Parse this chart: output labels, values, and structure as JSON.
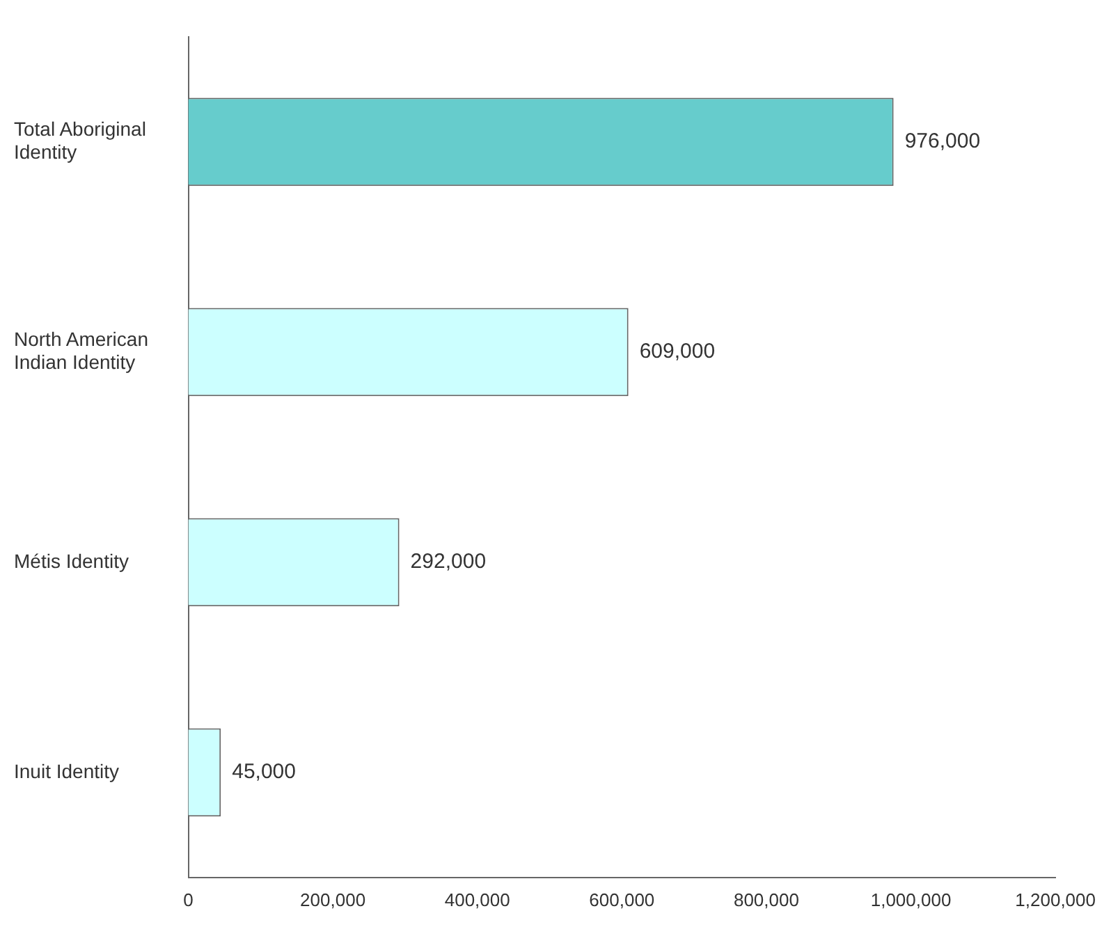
{
  "chart_data": {
    "type": "bar",
    "orientation": "horizontal",
    "categories": [
      "Total Aboriginal Identity",
      "North American Indian Identity",
      "Métis Identity",
      "Inuit Identity"
    ],
    "values": [
      976000,
      609000,
      292000,
      45000
    ],
    "colors": [
      "#66cccc",
      "#ccffff",
      "#ccffff",
      "#ccffff"
    ],
    "xlim": [
      0,
      1200000
    ],
    "xticks": [
      0,
      {
        "value": 200000,
        "label": "200,000"
      },
      {
        "value": 400000,
        "label": "400,000"
      },
      {
        "value": 600000,
        "label": "600,000"
      },
      {
        "value": 800000,
        "label": "800,000"
      },
      {
        "value": 1000000,
        "label": "1,000,000"
      },
      {
        "value": 1200000,
        "label": "1,200,000"
      }
    ],
    "value_labels": [
      "976,000",
      "609,000",
      "292,000",
      "45,000"
    ],
    "grid": false,
    "legend": false
  }
}
